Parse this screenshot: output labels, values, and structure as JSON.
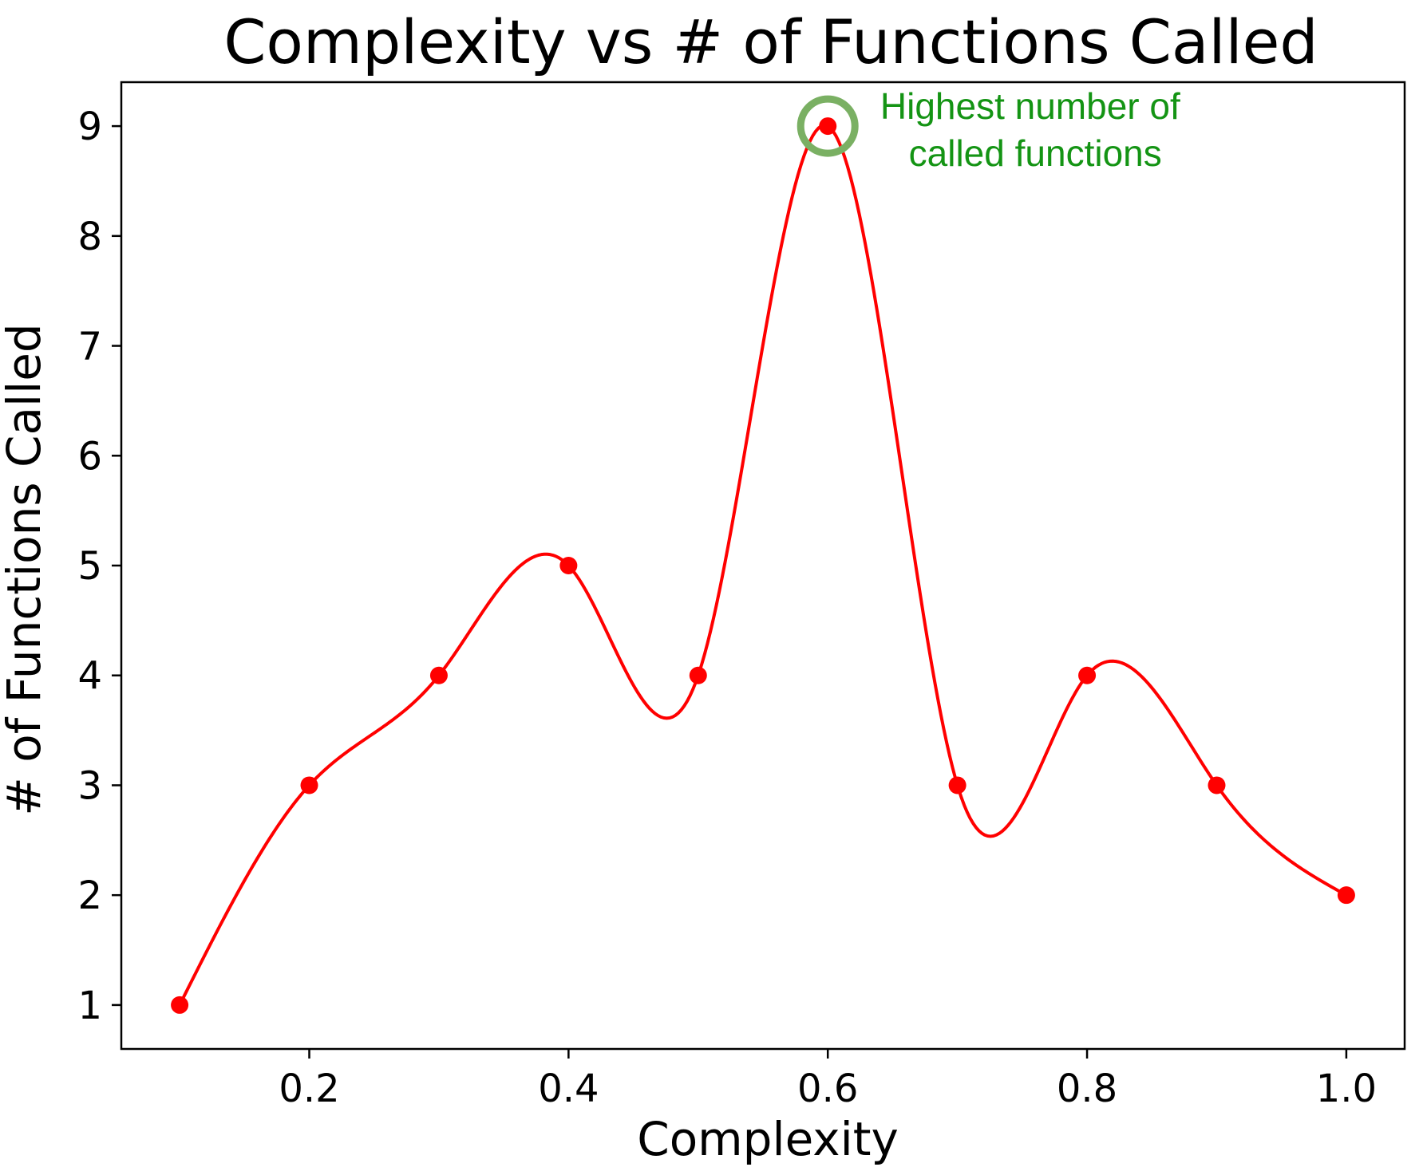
{
  "chart_data": {
    "type": "line",
    "title": "Complexity vs # of Functions Called",
    "xlabel": "Complexity",
    "ylabel": "# of Functions Called",
    "xlim": [
      0.055,
      1.045
    ],
    "ylim": [
      0.6,
      9.4
    ],
    "xticks": [
      0.2,
      0.4,
      0.6,
      0.8,
      1.0
    ],
    "xtick_labels": [
      "0.2",
      "0.4",
      "0.6",
      "0.8",
      "1.0"
    ],
    "yticks": [
      1,
      2,
      3,
      4,
      5,
      6,
      7,
      8,
      9
    ],
    "ytick_labels": [
      "1",
      "2",
      "3",
      "4",
      "5",
      "6",
      "7",
      "8",
      "9"
    ],
    "grid": false,
    "series": [
      {
        "color": "#ff0000",
        "smooth": true,
        "x": [
          0.1,
          0.2,
          0.3,
          0.4,
          0.5,
          0.6,
          0.7,
          0.8,
          0.9,
          1.0
        ],
        "y": [
          1,
          3,
          4,
          5,
          4,
          9,
          3,
          4,
          3,
          2
        ]
      }
    ],
    "annotations": [
      {
        "lines": [
          "Highest number of",
          "called functions"
        ],
        "x": 0.6,
        "y": 9,
        "color": "#149414",
        "circle_color": "#7ab063"
      }
    ]
  }
}
